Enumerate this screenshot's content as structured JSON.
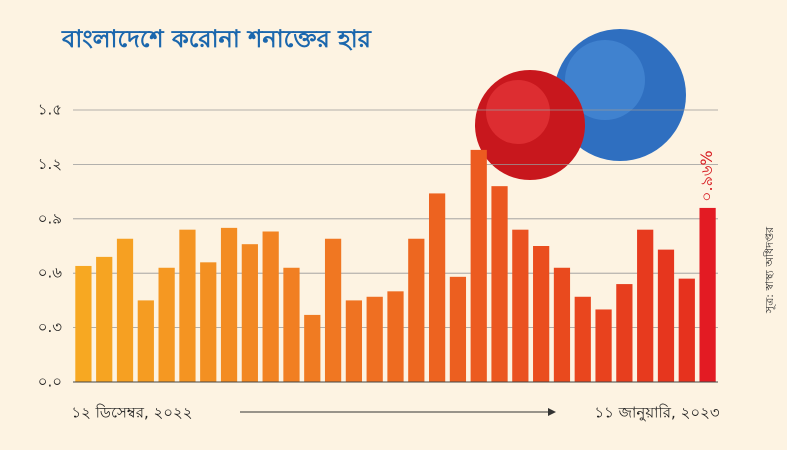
{
  "chart_data": {
    "type": "bar",
    "title": "বাংলাদেশে করোনা শনাক্তের হার",
    "source": "সূত্র: স্বাস্থ্য অধিদপ্তর",
    "categories": [
      "১২ ডিসেম্বর, ২০২২",
      null,
      null,
      null,
      null,
      null,
      null,
      null,
      null,
      null,
      null,
      null,
      null,
      null,
      null,
      null,
      null,
      null,
      null,
      null,
      null,
      null,
      null,
      null,
      null,
      null,
      null,
      null,
      null,
      null,
      "১১ জানুয়ারি, ২০২৩"
    ],
    "values": [
      0.64,
      0.69,
      0.79,
      0.45,
      0.63,
      0.84,
      0.66,
      0.85,
      0.76,
      0.83,
      0.63,
      0.37,
      0.79,
      0.45,
      0.47,
      0.5,
      0.79,
      1.04,
      0.58,
      1.28,
      1.08,
      0.84,
      0.75,
      0.63,
      0.47,
      0.4,
      0.54,
      0.84,
      0.73,
      0.57,
      0.96
    ],
    "value_labels": [
      null,
      null,
      null,
      null,
      null,
      null,
      null,
      null,
      null,
      null,
      null,
      null,
      null,
      null,
      null,
      null,
      null,
      null,
      null,
      null,
      null,
      null,
      null,
      null,
      null,
      null,
      null,
      null,
      null,
      null,
      "০.৯৬%"
    ],
    "colors": [
      "#f7a822",
      "#f6a422",
      "#f6a022",
      "#f59c22",
      "#f59822",
      "#f49422",
      "#f39022",
      "#f38c22",
      "#f28822",
      "#f28322",
      "#f17f22",
      "#f07b22",
      "#f07722",
      "#ef7322",
      "#ef6f22",
      "#ee6b20",
      "#ed6720",
      "#ed6320",
      "#ec5f20",
      "#ec5b20",
      "#eb5720",
      "#ea5220",
      "#ea4e1e",
      "#e94a1e",
      "#e9461e",
      "#e8421e",
      "#e73e1e",
      "#e73a1e",
      "#e6361e",
      "#e6321e",
      "#e31b23"
    ],
    "ylim": [
      0,
      1.5
    ],
    "yticks": [
      {
        "value": 0,
        "label": "০.০"
      },
      {
        "value": 0.3,
        "label": "০.৩"
      },
      {
        "value": 0.6,
        "label": "০.৬"
      },
      {
        "value": 0.9,
        "label": "০.৯"
      },
      {
        "value": 1.2,
        "label": "১.২"
      },
      {
        "value": 1.5,
        "label": "১.৫"
      }
    ],
    "grid": true
  }
}
